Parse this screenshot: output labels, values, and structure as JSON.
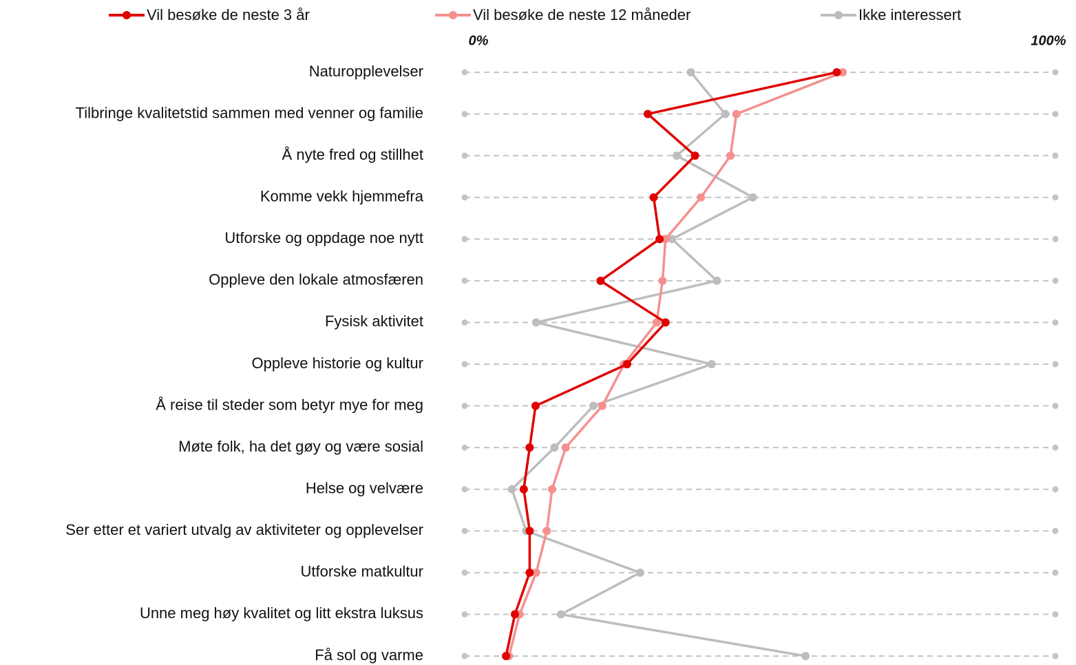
{
  "chart_data": {
    "type": "line",
    "categories": [
      "Naturopplevelser",
      "Tilbringe kvalitetstid sammen med venner og familie",
      "Å nyte fred og stillhet",
      "Komme vekk hjemmefra",
      "Utforske og oppdage noe nytt",
      "Oppleve den lokale atmosfæren",
      "Fysisk aktivitet",
      "Oppleve historie og kultur",
      "Å  reise til steder som betyr mye for meg",
      "Møte folk, ha det gøy og være sosial",
      "Helse og velvære",
      "Ser etter et variert utvalg av aktiviteter og opplevelser",
      "Utforske matkultur",
      "Unne meg høy kvalitet og litt ekstra luksus",
      "Få sol og varme"
    ],
    "series": [
      {
        "name": "Vil besøke de neste 3 år",
        "color": "#e00000",
        "values": [
          63,
          31,
          39,
          32,
          33,
          23,
          34,
          27.5,
          12,
          11,
          10,
          11,
          11,
          8.5,
          7
        ]
      },
      {
        "name": "Vil besøke de neste 12 måneder",
        "color": "#f59090",
        "values": [
          64,
          46,
          45,
          40,
          34,
          33.5,
          32.5,
          27,
          23.3,
          17.1,
          14.8,
          13.9,
          12.1,
          9.3,
          7.5
        ]
      },
      {
        "name": "Ikke interessert",
        "color": "#bdbdbd",
        "values": [
          38.3,
          44.1,
          35.9,
          48.8,
          35.1,
          42.7,
          12.1,
          41.8,
          21.8,
          15.2,
          8,
          10.4,
          29.7,
          16.3,
          57.7
        ]
      }
    ],
    "xlim": [
      0,
      100
    ],
    "xticks": [
      {
        "value": 0,
        "label": "0%"
      },
      {
        "value": 100,
        "label": "100%"
      }
    ],
    "grid": true,
    "legend": "top"
  }
}
